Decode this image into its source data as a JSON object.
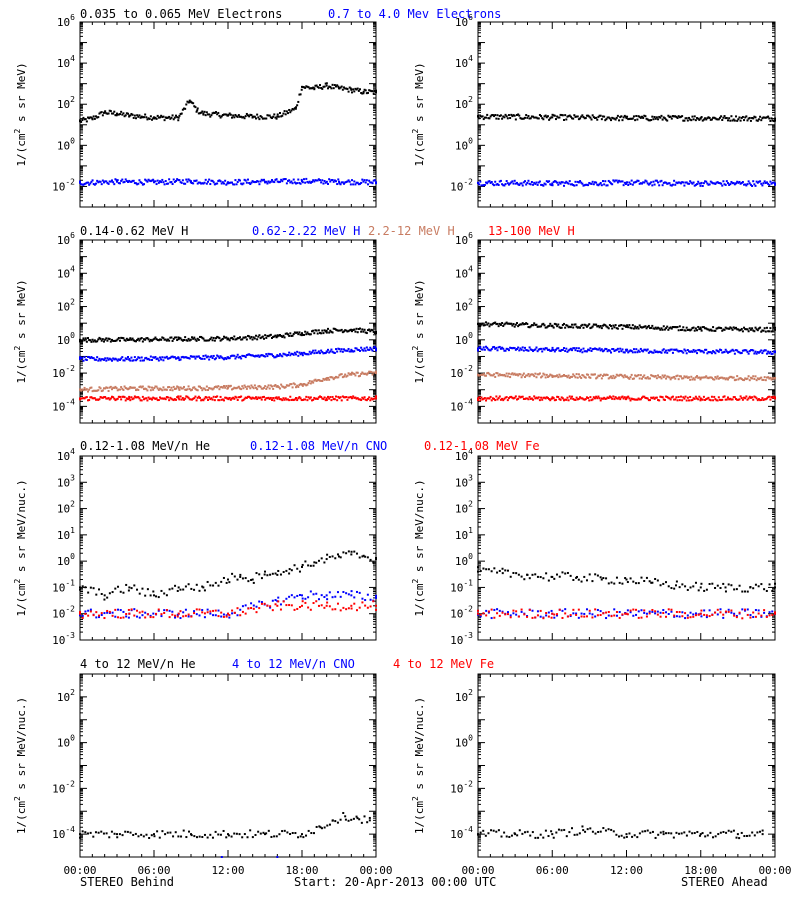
{
  "footer": {
    "left": "STEREO Behind",
    "center": "Start: 20-Apr-2013 00:00 UTC",
    "right": "STEREO Ahead"
  },
  "colors": {
    "black": "#000000",
    "blue": "#0000ff",
    "tan": "#c87c62",
    "red": "#ff0000"
  },
  "chart_data": [
    {
      "type": "scatter",
      "panel": "electrons-behind",
      "x": "hours since start",
      "xlim": [
        0,
        24
      ],
      "yscale": "log",
      "ylim": [
        0.001,
        1000000
      ],
      "ytick_labels": [
        "10^-2",
        "10^0",
        "10^2",
        "10^4",
        "10^6"
      ],
      "ylabel": "1/(cm^2 s sr MeV)",
      "series": [
        {
          "name": "0.035 to 0.065 MeV Electrons",
          "color": "#000000",
          "points": [
            [
              0,
              15
            ],
            [
              1,
              20
            ],
            [
              2,
              40
            ],
            [
              3,
              35
            ],
            [
              4,
              28
            ],
            [
              5,
              25
            ],
            [
              6,
              23
            ],
            [
              7,
              22
            ],
            [
              8,
              22
            ],
            [
              8.9,
              150
            ],
            [
              9.5,
              50
            ],
            [
              10,
              35
            ],
            [
              12,
              28
            ],
            [
              14,
              25
            ],
            [
              16,
              25
            ],
            [
              17.5,
              60
            ],
            [
              18,
              700
            ],
            [
              19,
              600
            ],
            [
              20,
              800
            ],
            [
              21,
              600
            ],
            [
              22,
              500
            ],
            [
              23,
              400
            ],
            [
              24,
              380
            ]
          ]
        },
        {
          "name": "0.7 to 4.0 Mev Electrons",
          "color": "#0000ff",
          "points": [
            [
              0,
              0.015
            ],
            [
              3,
              0.017
            ],
            [
              6,
              0.016
            ],
            [
              9,
              0.018
            ],
            [
              12,
              0.016
            ],
            [
              15,
              0.017
            ],
            [
              18,
              0.018
            ],
            [
              21,
              0.017
            ],
            [
              24,
              0.016
            ]
          ]
        }
      ]
    },
    {
      "type": "scatter",
      "panel": "electrons-ahead",
      "x": "hours since start",
      "xlim": [
        0,
        24
      ],
      "yscale": "log",
      "ylim": [
        0.001,
        1000000
      ],
      "ytick_labels": [
        "10^-2",
        "10^0",
        "10^2",
        "10^4",
        "10^6"
      ],
      "ylabel": "1/(cm^2 s sr MeV)",
      "series": [
        {
          "name": "0.035 to 0.065 MeV Electrons",
          "color": "#000000",
          "points": [
            [
              0,
              25
            ],
            [
              6,
              23
            ],
            [
              12,
              21
            ],
            [
              18,
              21
            ],
            [
              24,
              20
            ]
          ]
        },
        {
          "name": "0.7 to 4.0 Mev Electrons",
          "color": "#0000ff",
          "points": [
            [
              0,
              0.015
            ],
            [
              6,
              0.014
            ],
            [
              12,
              0.015
            ],
            [
              18,
              0.014
            ],
            [
              24,
              0.014
            ]
          ]
        }
      ]
    },
    {
      "type": "scatter",
      "panel": "protons-behind",
      "x": "hours since start",
      "xlim": [
        0,
        24
      ],
      "yscale": "log",
      "ylim": [
        1e-05,
        1000000
      ],
      "ytick_labels": [
        "10^-4",
        "10^-2",
        "10^0",
        "10^2",
        "10^4",
        "10^6"
      ],
      "ylabel": "1/(cm^2 s sr MeV)",
      "series": [
        {
          "name": "0.14-0.62 MeV H",
          "color": "#000000",
          "points": [
            [
              0,
              1.0
            ],
            [
              4,
              1.0
            ],
            [
              8,
              1.1
            ],
            [
              12,
              1.2
            ],
            [
              16,
              1.6
            ],
            [
              18,
              2.5
            ],
            [
              20,
              3.5
            ],
            [
              22,
              4
            ],
            [
              24,
              3
            ]
          ]
        },
        {
          "name": "0.62-2.22 MeV H",
          "color": "#0000ff",
          "points": [
            [
              0,
              0.07
            ],
            [
              4,
              0.07
            ],
            [
              8,
              0.08
            ],
            [
              12,
              0.09
            ],
            [
              16,
              0.12
            ],
            [
              18,
              0.15
            ],
            [
              20,
              0.2
            ],
            [
              22,
              0.25
            ],
            [
              24,
              0.3
            ]
          ]
        },
        {
          "name": "2.2-12 MeV H",
          "color": "#c87c62",
          "points": [
            [
              0,
              0.001
            ],
            [
              4,
              0.0012
            ],
            [
              8,
              0.0012
            ],
            [
              12,
              0.0013
            ],
            [
              16,
              0.0015
            ],
            [
              18,
              0.002
            ],
            [
              20,
              0.005
            ],
            [
              22,
              0.008
            ],
            [
              24,
              0.01
            ]
          ]
        },
        {
          "name": "13-100 MeV H",
          "color": "#ff0000",
          "points": [
            [
              0,
              0.0003
            ],
            [
              4,
              0.0003
            ],
            [
              8,
              0.0003
            ],
            [
              12,
              0.0003
            ],
            [
              16,
              0.0003
            ],
            [
              20,
              0.0003
            ],
            [
              24,
              0.0003
            ]
          ]
        }
      ]
    },
    {
      "type": "scatter",
      "panel": "protons-ahead",
      "x": "hours since start",
      "xlim": [
        0,
        24
      ],
      "yscale": "log",
      "ylim": [
        1e-05,
        1000000
      ],
      "ytick_labels": [
        "10^-4",
        "10^-2",
        "10^0",
        "10^2",
        "10^4",
        "10^6"
      ],
      "ylabel": "1/(cm^2 s sr MeV)",
      "series": [
        {
          "name": "0.14-0.62 MeV H",
          "color": "#000000",
          "points": [
            [
              0,
              9
            ],
            [
              6,
              7
            ],
            [
              12,
              6
            ],
            [
              18,
              4.5
            ],
            [
              24,
              4
            ]
          ]
        },
        {
          "name": "0.62-2.22 MeV H",
          "color": "#0000ff",
          "points": [
            [
              0,
              0.3
            ],
            [
              6,
              0.25
            ],
            [
              12,
              0.22
            ],
            [
              18,
              0.2
            ],
            [
              24,
              0.18
            ]
          ]
        },
        {
          "name": "2.2-12 MeV H",
          "color": "#c87c62",
          "points": [
            [
              0,
              0.008
            ],
            [
              6,
              0.007
            ],
            [
              12,
              0.006
            ],
            [
              18,
              0.005
            ],
            [
              24,
              0.005
            ]
          ]
        },
        {
          "name": "13-100 MeV H",
          "color": "#ff0000",
          "points": [
            [
              0,
              0.0003
            ],
            [
              6,
              0.0003
            ],
            [
              12,
              0.0003
            ],
            [
              18,
              0.0003
            ],
            [
              24,
              0.0003
            ]
          ]
        }
      ]
    },
    {
      "type": "scatter",
      "panel": "heavy-low-behind",
      "x": "hours since start",
      "xlim": [
        0,
        24
      ],
      "yscale": "log",
      "ylim": [
        0.001,
        10000
      ],
      "ytick_labels": [
        "10^-3",
        "10^-2",
        "10^-1",
        "10^0",
        "10^1",
        "10^2",
        "10^3",
        "10^4"
      ],
      "ylabel": "1/(cm^2 s sr MeV/nuc.)",
      "series": [
        {
          "name": "0.12-1.08 MeV/n He",
          "color": "#000000",
          "points": [
            [
              0,
              0.1
            ],
            [
              2,
              0.05
            ],
            [
              4,
              0.1
            ],
            [
              6,
              0.05
            ],
            [
              8,
              0.1
            ],
            [
              10,
              0.1
            ],
            [
              12,
              0.2
            ],
            [
              13,
              0.3
            ],
            [
              14,
              0.2
            ],
            [
              15,
              0.4
            ],
            [
              16,
              0.3
            ],
            [
              17,
              0.5
            ],
            [
              18,
              0.6
            ],
            [
              19,
              0.9
            ],
            [
              20,
              1.2
            ],
            [
              21,
              1.5
            ],
            [
              22,
              1.8
            ],
            [
              23,
              1.6
            ],
            [
              24,
              1.2
            ]
          ]
        },
        {
          "name": "0.12-1.08 MeV/n CNO",
          "color": "#0000ff",
          "points": [
            [
              0,
              0.01
            ],
            [
              4,
              0.01
            ],
            [
              8,
              0.01
            ],
            [
              12,
              0.01
            ],
            [
              16,
              0.03
            ],
            [
              18,
              0.05
            ],
            [
              20,
              0.05
            ],
            [
              22,
              0.05
            ],
            [
              24,
              0.04
            ]
          ]
        },
        {
          "name": "0.12-1.08 MeV Fe",
          "color": "#ff0000",
          "points": [
            [
              0,
              0.01
            ],
            [
              4,
              0.01
            ],
            [
              8,
              0.01
            ],
            [
              12,
              0.01
            ],
            [
              16,
              0.02
            ],
            [
              18,
              0.02
            ],
            [
              20,
              0.02
            ],
            [
              22,
              0.02
            ],
            [
              24,
              0.02
            ]
          ]
        }
      ]
    },
    {
      "type": "scatter",
      "panel": "heavy-low-ahead",
      "x": "hours since start",
      "xlim": [
        0,
        24
      ],
      "yscale": "log",
      "ylim": [
        0.001,
        10000
      ],
      "ytick_labels": [
        "10^-3",
        "10^-2",
        "10^-1",
        "10^0",
        "10^1",
        "10^2",
        "10^3",
        "10^4"
      ],
      "ylabel": "1/(cm^2 s sr MeV/nuc.)",
      "series": [
        {
          "name": "0.12-1.08 MeV/n He",
          "color": "#000000",
          "points": [
            [
              0,
              0.4
            ],
            [
              2,
              0.35
            ],
            [
              4,
              0.3
            ],
            [
              6,
              0.25
            ],
            [
              8,
              0.25
            ],
            [
              10,
              0.2
            ],
            [
              12,
              0.2
            ],
            [
              14,
              0.15
            ],
            [
              16,
              0.12
            ],
            [
              18,
              0.1
            ],
            [
              20,
              0.1
            ],
            [
              22,
              0.1
            ],
            [
              24,
              0.1
            ]
          ]
        },
        {
          "name": "0.12-1.08 MeV/n CNO",
          "color": "#0000ff",
          "points": [
            [
              0,
              0.01
            ],
            [
              6,
              0.01
            ],
            [
              12,
              0.01
            ],
            [
              18,
              0.01
            ],
            [
              24,
              0.01
            ]
          ]
        },
        {
          "name": "0.12-1.08 MeV Fe",
          "color": "#ff0000",
          "points": [
            [
              0,
              0.01
            ],
            [
              6,
              0.01
            ],
            [
              12,
              0.01
            ],
            [
              18,
              0.01
            ],
            [
              24,
              0.01
            ]
          ]
        }
      ]
    },
    {
      "type": "scatter",
      "panel": "heavy-high-behind",
      "x": "hours since start",
      "xlim": [
        0,
        24
      ],
      "yscale": "log",
      "ylim": [
        1e-05,
        1000
      ],
      "ytick_labels": [
        "10^-4",
        "10^-2",
        "10^0",
        "10^2"
      ],
      "ylabel": "1/(cm^2 s sr MeV/nuc.)",
      "series": [
        {
          "name": "4 to 12 MeV/n He",
          "color": "#000000",
          "points": [
            [
              0,
              0.0001
            ],
            [
              3,
              0.0001
            ],
            [
              6,
              0.0001
            ],
            [
              9,
              0.0001
            ],
            [
              12,
              0.0001
            ],
            [
              15,
              0.0001
            ],
            [
              18,
              0.0001
            ],
            [
              19.5,
              0.0002
            ],
            [
              20.5,
              0.0004
            ],
            [
              21.5,
              0.0006
            ],
            [
              22.5,
              0.0005
            ],
            [
              23.5,
              0.0004
            ]
          ]
        },
        {
          "name": "4 to 12 MeV/n CNO",
          "color": "#0000ff",
          "points": [
            [
              11.5,
              1e-05
            ],
            [
              16,
              1e-05
            ]
          ]
        },
        {
          "name": "4 to 12 MeV Fe",
          "color": "#ff0000",
          "points": []
        }
      ]
    },
    {
      "type": "scatter",
      "panel": "heavy-high-ahead",
      "x": "hours since start",
      "xlim": [
        0,
        24
      ],
      "yscale": "log",
      "ylim": [
        1e-05,
        1000
      ],
      "ytick_labels": [
        "10^-4",
        "10^-2",
        "10^0",
        "10^2"
      ],
      "ylabel": "1/(cm^2 s sr MeV/nuc.)",
      "series": [
        {
          "name": "4 to 12 MeV/n He",
          "color": "#000000",
          "points": [
            [
              0,
              0.0001
            ],
            [
              3,
              0.0001
            ],
            [
              6,
              0.0001
            ],
            [
              8.5,
              0.00015
            ],
            [
              12,
              0.0001
            ],
            [
              15,
              0.0001
            ],
            [
              18,
              0.0001
            ],
            [
              21,
              0.0001
            ],
            [
              23,
              0.0001
            ]
          ]
        },
        {
          "name": "4 to 12 MeV/n CNO",
          "color": "#0000ff",
          "points": []
        },
        {
          "name": "4 to 12 MeV Fe",
          "color": "#ff0000",
          "points": []
        }
      ]
    }
  ],
  "x_tick_labels": [
    "00:00",
    "06:00",
    "12:00",
    "18:00",
    "00:00"
  ],
  "row_titles": [
    [
      {
        "text": "0.035 to 0.065 MeV Electrons",
        "color": "#000000"
      },
      {
        "text": "0.7 to 4.0 Mev Electrons",
        "color": "#0000ff"
      }
    ],
    [
      {
        "text": "0.14-0.62 MeV H",
        "color": "#000000"
      },
      {
        "text": "0.62-2.22 MeV H",
        "color": "#0000ff"
      },
      {
        "text": "2.2-12 MeV H",
        "color": "#c87c62"
      },
      {
        "text": "13-100 MeV H",
        "color": "#ff0000"
      }
    ],
    [
      {
        "text": "0.12-1.08 MeV/n He",
        "color": "#000000"
      },
      {
        "text": "0.12-1.08 MeV/n CNO",
        "color": "#0000ff"
      },
      {
        "text": "0.12-1.08 MeV Fe",
        "color": "#ff0000"
      }
    ],
    [
      {
        "text": "4 to 12 MeV/n He",
        "color": "#000000"
      },
      {
        "text": "4 to 12 MeV/n CNO",
        "color": "#0000ff"
      },
      {
        "text": "4 to 12 MeV Fe",
        "color": "#ff0000"
      }
    ]
  ]
}
